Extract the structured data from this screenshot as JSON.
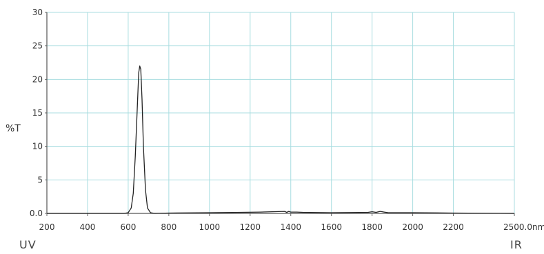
{
  "chart_data": {
    "type": "line",
    "ylabel": "%T",
    "xunit_tick": "2500.0nm",
    "left_label": "UV",
    "right_label": "IR",
    "xlim": [
      200,
      2500
    ],
    "ylim": [
      0,
      30
    ],
    "x_ticks": [
      {
        "value": 200,
        "label": "200"
      },
      {
        "value": 400,
        "label": "400"
      },
      {
        "value": 600,
        "label": "600"
      },
      {
        "value": 800,
        "label": "800"
      },
      {
        "value": 1000,
        "label": "1000"
      },
      {
        "value": 1200,
        "label": "1200"
      },
      {
        "value": 1400,
        "label": "1400"
      },
      {
        "value": 1600,
        "label": "1600"
      },
      {
        "value": 1800,
        "label": "1800"
      },
      {
        "value": 2000,
        "label": "2000"
      },
      {
        "value": 2200,
        "label": "2200"
      },
      {
        "value": 2500,
        "label": "2500.0nm"
      }
    ],
    "y_ticks": [
      {
        "value": 0,
        "label": "0.0"
      },
      {
        "value": 5,
        "label": "5"
      },
      {
        "value": 10,
        "label": "10"
      },
      {
        "value": 15,
        "label": "15"
      },
      {
        "value": 20,
        "label": "20"
      },
      {
        "value": 25,
        "label": "25"
      },
      {
        "value": 30,
        "label": "30"
      }
    ],
    "grid": true,
    "grid_color": "#a8dde0",
    "line_color": "#222222",
    "series": [
      {
        "x": [
          200,
          400,
          580,
          600,
          615,
          625,
          635,
          645,
          652,
          657,
          662,
          668,
          675,
          685,
          695,
          710,
          730,
          800,
          1000,
          1150,
          1250,
          1370,
          1380,
          1390,
          1400,
          1430,
          1460,
          1600,
          1780,
          1800,
          1820,
          1840,
          1860,
          1880,
          2000,
          2200,
          2500
        ],
        "y": [
          0.0,
          0.0,
          0.0,
          0.1,
          0.8,
          3.0,
          8.5,
          16.0,
          21.0,
          22.0,
          21.5,
          17.0,
          10.0,
          3.5,
          0.8,
          0.1,
          0.0,
          0.05,
          0.1,
          0.15,
          0.2,
          0.3,
          0.15,
          0.3,
          0.2,
          0.2,
          0.15,
          0.1,
          0.15,
          0.25,
          0.15,
          0.3,
          0.2,
          0.1,
          0.1,
          0.05,
          0.0
        ]
      }
    ]
  }
}
